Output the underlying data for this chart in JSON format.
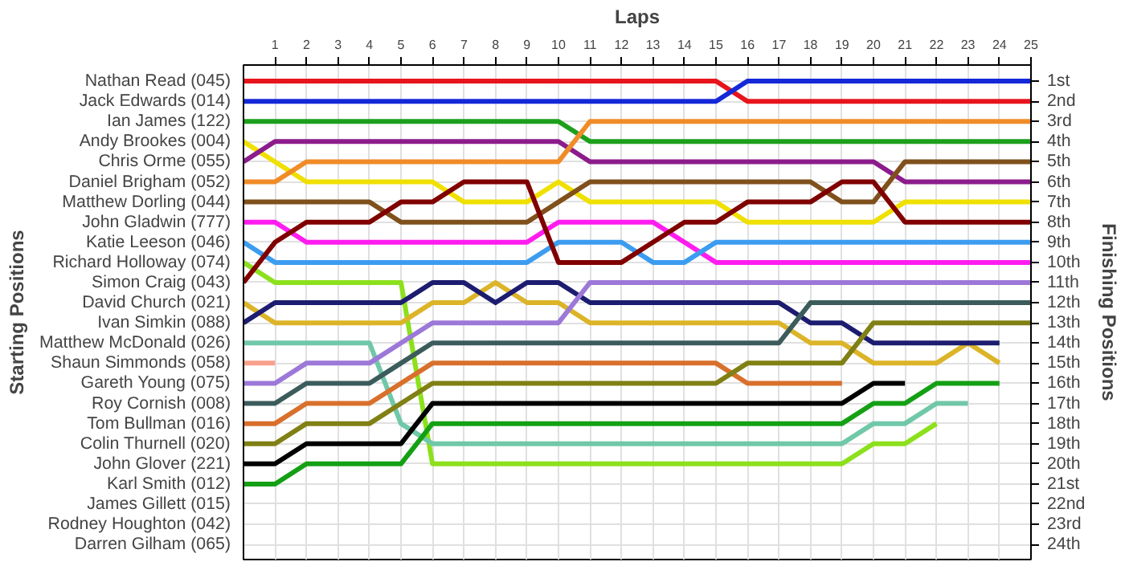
{
  "chart_data": {
    "type": "line",
    "xlabel": "Laps",
    "ylabel": "Finishing Positions",
    "annotations": [
      "Starting Positions",
      "James Gillett (015)",
      "Rodney Houghton (042)",
      "Darren Gilham (065)"
    ],
    "x": [
      0,
      1,
      2,
      3,
      4,
      5,
      6,
      7,
      8,
      9,
      10,
      11,
      12,
      13,
      14,
      15,
      16,
      17,
      18,
      19,
      20,
      21,
      22,
      23,
      24,
      25
    ],
    "xlim": [
      0,
      25
    ],
    "xticks": [
      1,
      2,
      3,
      4,
      5,
      6,
      7,
      8,
      9,
      10,
      11,
      12,
      13,
      14,
      15,
      16,
      17,
      18,
      19,
      20,
      21,
      22,
      23,
      24,
      25
    ],
    "ylim": [
      24.75,
      0.2
    ],
    "yticks": [
      {
        "value": 1,
        "label": "1st"
      },
      {
        "value": 2,
        "label": "2nd"
      },
      {
        "value": 3,
        "label": "3rd"
      },
      {
        "value": 4,
        "label": "4th"
      },
      {
        "value": 5,
        "label": "5th"
      },
      {
        "value": 6,
        "label": "6th"
      },
      {
        "value": 7,
        "label": "7th"
      },
      {
        "value": 8,
        "label": "8th"
      },
      {
        "value": 9,
        "label": "9th"
      },
      {
        "value": 10,
        "label": "10th"
      },
      {
        "value": 11,
        "label": "11th"
      },
      {
        "value": 12,
        "label": "12th"
      },
      {
        "value": 13,
        "label": "13th"
      },
      {
        "value": 14,
        "label": "14th"
      },
      {
        "value": 15,
        "label": "15th"
      },
      {
        "value": 16,
        "label": "16th"
      },
      {
        "value": 17,
        "label": "17th"
      },
      {
        "value": 18,
        "label": "18th"
      },
      {
        "value": 19,
        "label": "19th"
      },
      {
        "value": 20,
        "label": "20th"
      },
      {
        "value": 21,
        "label": "21st"
      },
      {
        "value": 22,
        "label": "22nd"
      },
      {
        "value": 23,
        "label": "23rd"
      },
      {
        "value": 24,
        "label": "24th"
      }
    ],
    "grid": true,
    "marker": "none",
    "line_style": "solid",
    "series": [
      {
        "name": "Nathan Read (045)",
        "color": "#e8141c",
        "values": [
          1,
          1,
          1,
          1,
          1,
          1,
          1,
          1,
          1,
          1,
          1,
          1,
          1,
          1,
          1,
          1,
          2,
          2,
          2,
          2,
          2,
          2,
          2,
          2,
          2,
          2
        ]
      },
      {
        "name": "Jack Edwards (014)",
        "color": "#1428d8",
        "values": [
          2,
          2,
          2,
          2,
          2,
          2,
          2,
          2,
          2,
          2,
          2,
          2,
          2,
          2,
          2,
          2,
          1,
          1,
          1,
          1,
          1,
          1,
          1,
          1,
          1,
          1
        ]
      },
      {
        "name": "Ian James (122)",
        "color": "#1ca01c",
        "values": [
          3,
          3,
          3,
          3,
          3,
          3,
          3,
          3,
          3,
          3,
          3,
          4,
          4,
          4,
          4,
          4,
          4,
          4,
          4,
          4,
          4,
          4,
          4,
          4,
          4,
          4
        ]
      },
      {
        "name": "Andy Brookes (004)",
        "color": "#f0e000",
        "values": [
          4,
          5,
          6,
          6,
          6,
          6,
          6,
          7,
          7,
          7,
          6,
          7,
          7,
          7,
          7,
          7,
          8,
          8,
          8,
          8,
          8,
          7,
          7,
          7,
          7,
          7
        ]
      },
      {
        "name": "Chris Orme (055)",
        "color": "#8c1c8c",
        "values": [
          5,
          4,
          4,
          4,
          4,
          4,
          4,
          4,
          4,
          4,
          4,
          5,
          5,
          5,
          5,
          5,
          5,
          5,
          5,
          5,
          5,
          6,
          6,
          6,
          6,
          6
        ]
      },
      {
        "name": "Daniel Brigham (052)",
        "color": "#f08c28",
        "values": [
          6,
          6,
          5,
          5,
          5,
          5,
          5,
          5,
          5,
          5,
          5,
          3,
          3,
          3,
          3,
          3,
          3,
          3,
          3,
          3,
          3,
          3,
          3,
          3,
          3,
          3
        ]
      },
      {
        "name": "Matthew Dorling (044)",
        "color": "#80501c",
        "values": [
          7,
          7,
          7,
          7,
          7,
          8,
          8,
          8,
          8,
          8,
          7,
          6,
          6,
          6,
          6,
          6,
          6,
          6,
          6,
          7,
          7,
          5,
          5,
          5,
          5,
          5
        ]
      },
      {
        "name": "John Gladwin (777)",
        "color": "#ff1cf0",
        "values": [
          8,
          8,
          9,
          9,
          9,
          9,
          9,
          9,
          9,
          9,
          8,
          8,
          8,
          8,
          9,
          10,
          10,
          10,
          10,
          10,
          10,
          10,
          10,
          10,
          10,
          10
        ]
      },
      {
        "name": "Katie Leeson (046)",
        "color": "#3c9cf0",
        "values": [
          9,
          10,
          10,
          10,
          10,
          10,
          10,
          10,
          10,
          10,
          9,
          9,
          9,
          10,
          10,
          9,
          9,
          9,
          9,
          9,
          9,
          9,
          9,
          9,
          9,
          9
        ]
      },
      {
        "name": "Richard Holloway (074)",
        "color": "#8ce01c",
        "values": [
          10,
          11,
          11,
          11,
          11,
          11,
          20,
          20,
          20,
          20,
          20,
          20,
          20,
          20,
          20,
          20,
          20,
          20,
          20,
          20,
          19,
          19,
          18,
          null,
          null,
          null
        ]
      },
      {
        "name": "Simon Craig (043)",
        "color": "#800000",
        "values": [
          11,
          9,
          8,
          8,
          8,
          7,
          7,
          6,
          6,
          6,
          10,
          10,
          10,
          9,
          8,
          8,
          7,
          7,
          7,
          6,
          6,
          8,
          8,
          8,
          8,
          8
        ]
      },
      {
        "name": "David Church (021)",
        "color": "#dcb428",
        "values": [
          12,
          13,
          13,
          13,
          13,
          13,
          12,
          12,
          11,
          12,
          12,
          13,
          13,
          13,
          13,
          13,
          13,
          13,
          14,
          14,
          15,
          15,
          15,
          14,
          15,
          null
        ]
      },
      {
        "name": "Ivan Simkin (088)",
        "color": "#1c1c70",
        "values": [
          13,
          12,
          12,
          12,
          12,
          12,
          11,
          11,
          12,
          11,
          11,
          12,
          12,
          12,
          12,
          12,
          12,
          12,
          13,
          13,
          14,
          14,
          14,
          14,
          14,
          null
        ]
      },
      {
        "name": "Matthew McDonald (026)",
        "color": "#70c8a8",
        "values": [
          14,
          14,
          14,
          14,
          14,
          18,
          19,
          19,
          19,
          19,
          19,
          19,
          19,
          19,
          19,
          19,
          19,
          19,
          19,
          19,
          18,
          18,
          17,
          17,
          null,
          null
        ]
      },
      {
        "name": "Shaun Simmonds (058)",
        "color": "#f8a08c",
        "values": [
          15,
          15,
          null,
          null,
          null,
          null,
          null,
          null,
          null,
          null,
          null,
          null,
          null,
          null,
          null,
          null,
          null,
          null,
          null,
          null,
          null,
          null,
          null,
          null,
          null,
          null
        ]
      },
      {
        "name": "Gareth Young (075)",
        "color": "#9c78d8",
        "values": [
          16,
          16,
          15,
          15,
          15,
          14,
          13,
          13,
          13,
          13,
          13,
          11,
          11,
          11,
          11,
          11,
          11,
          11,
          11,
          11,
          11,
          11,
          11,
          11,
          11,
          11
        ]
      },
      {
        "name": "Roy Cornish (008)",
        "color": "#3c5c5c",
        "values": [
          17,
          17,
          16,
          16,
          16,
          15,
          14,
          14,
          14,
          14,
          14,
          14,
          14,
          14,
          14,
          14,
          14,
          14,
          12,
          12,
          12,
          12,
          12,
          12,
          12,
          12
        ]
      },
      {
        "name": "Tom Bullman (016)",
        "color": "#d8702c",
        "values": [
          18,
          18,
          17,
          17,
          17,
          16,
          15,
          15,
          15,
          15,
          15,
          15,
          15,
          15,
          15,
          15,
          16,
          16,
          16,
          16,
          null,
          null,
          null,
          null,
          null,
          null
        ]
      },
      {
        "name": "Colin Thurnell (020)",
        "color": "#808014",
        "values": [
          19,
          19,
          18,
          18,
          18,
          17,
          16,
          16,
          16,
          16,
          16,
          16,
          16,
          16,
          16,
          16,
          15,
          15,
          15,
          15,
          13,
          13,
          13,
          13,
          13,
          13
        ]
      },
      {
        "name": "John Glover (221)",
        "color": "#000000",
        "values": [
          20,
          20,
          19,
          19,
          19,
          19,
          17,
          17,
          17,
          17,
          17,
          17,
          17,
          17,
          17,
          17,
          17,
          17,
          17,
          17,
          16,
          16,
          null,
          null,
          null,
          null
        ]
      },
      {
        "name": "Karl Smith (012)",
        "color": "#14a014",
        "values": [
          21,
          21,
          20,
          20,
          20,
          20,
          18,
          18,
          18,
          18,
          18,
          18,
          18,
          18,
          18,
          18,
          18,
          18,
          18,
          18,
          17,
          17,
          16,
          16,
          16,
          null
        ]
      }
    ]
  }
}
